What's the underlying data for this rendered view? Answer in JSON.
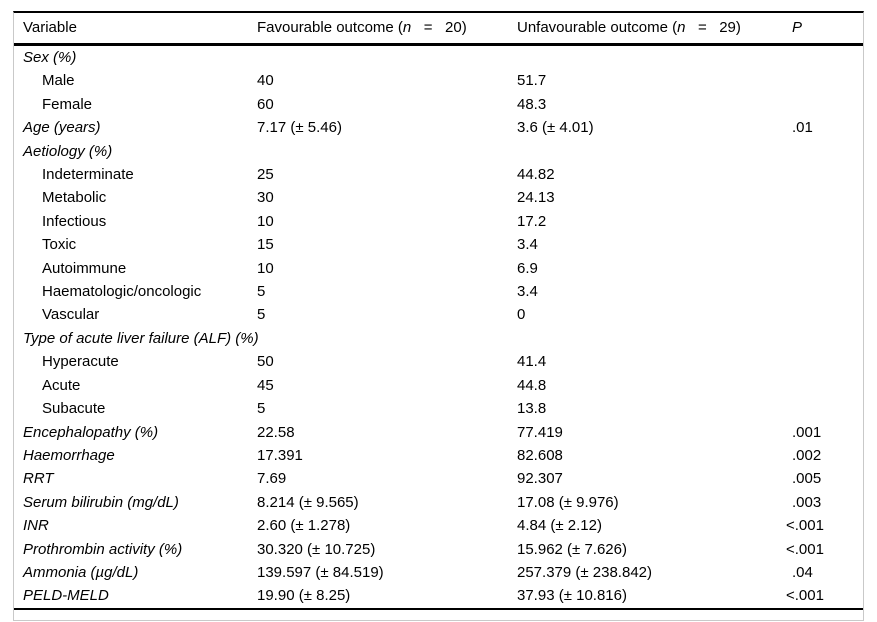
{
  "table": {
    "header": {
      "col1": "Variable",
      "col2_prefix": "Favourable outcome (",
      "col2_n": "n",
      "col2_suffix": "   =   20)",
      "col3_prefix": "Unfavourable outcome (",
      "col3_n": "n",
      "col3_suffix": "   =   29)",
      "col4": "P"
    },
    "rows": [
      {
        "label": "Sex (%)",
        "indent": false,
        "italic": true,
        "fav": "",
        "unfav": "",
        "p": ""
      },
      {
        "label": "Male",
        "indent": true,
        "italic": false,
        "fav": "40",
        "unfav": "51.7",
        "p": ""
      },
      {
        "label": "Female",
        "indent": true,
        "italic": false,
        "fav": "60",
        "unfav": "48.3",
        "p": ""
      },
      {
        "label": "Age (years)",
        "indent": false,
        "italic": true,
        "fav": "7.17 (± 5.46)",
        "unfav": "3.6 (± 4.01)",
        "p": ".01"
      },
      {
        "label": "Aetiology (%)",
        "indent": false,
        "italic": true,
        "fav": "",
        "unfav": "",
        "p": ""
      },
      {
        "label": "Indeterminate",
        "indent": true,
        "italic": false,
        "fav": "25",
        "unfav": "44.82",
        "p": ""
      },
      {
        "label": "Metabolic",
        "indent": true,
        "italic": false,
        "fav": "30",
        "unfav": "24.13",
        "p": ""
      },
      {
        "label": "Infectious",
        "indent": true,
        "italic": false,
        "fav": "10",
        "unfav": "17.2",
        "p": ""
      },
      {
        "label": "Toxic",
        "indent": true,
        "italic": false,
        "fav": "15",
        "unfav": "3.4",
        "p": ""
      },
      {
        "label": "Autoimmune",
        "indent": true,
        "italic": false,
        "fav": "10",
        "unfav": "6.9",
        "p": ""
      },
      {
        "label": "Haematologic/oncologic",
        "indent": true,
        "italic": false,
        "fav": "5",
        "unfav": "3.4",
        "p": ""
      },
      {
        "label": "Vascular",
        "indent": true,
        "italic": false,
        "fav": "5",
        "unfav": "0",
        "p": ""
      },
      {
        "label": "Type of acute liver failure (ALF) (%)",
        "indent": false,
        "italic": true,
        "fav": "",
        "unfav": "",
        "p": ""
      },
      {
        "label": "Hyperacute",
        "indent": true,
        "italic": false,
        "fav": "50",
        "unfav": "41.4",
        "p": ""
      },
      {
        "label": "Acute",
        "indent": true,
        "italic": false,
        "fav": "45",
        "unfav": "44.8",
        "p": ""
      },
      {
        "label": "Subacute",
        "indent": true,
        "italic": false,
        "fav": "5",
        "unfav": "13.8",
        "p": ""
      },
      {
        "label": "Encephalopathy (%)",
        "indent": false,
        "italic": true,
        "fav": "22.58",
        "unfav": "77.419",
        "p": ".001"
      },
      {
        "label": "Haemorrhage",
        "indent": false,
        "italic": true,
        "fav": "17.391",
        "unfav": "82.608",
        "p": ".002"
      },
      {
        "label": "RRT",
        "indent": false,
        "italic": true,
        "fav": "7.69",
        "unfav": "92.307",
        "p": ".005"
      },
      {
        "label": "Serum bilirubin (mg/dL)",
        "indent": false,
        "italic": true,
        "fav": "8.214 (± 9.565)",
        "unfav": "17.08 (± 9.976)",
        "p": ".003"
      },
      {
        "label": "INR",
        "indent": false,
        "italic": true,
        "fav": "2.60 (± 1.278)",
        "unfav": "4.84 (± 2.12)",
        "p": "<.001"
      },
      {
        "label": "Prothrombin activity (%)",
        "indent": false,
        "italic": true,
        "fav": "30.320 (± 10.725)",
        "unfav": "15.962 (± 7.626)",
        "p": "<.001"
      },
      {
        "label": "Ammonia (µg/dL)",
        "indent": false,
        "italic": true,
        "fav": "139.597 (± 84.519)",
        "unfav": "257.379 (± 238.842)",
        "p": ".04"
      },
      {
        "label": "PELD-MELD",
        "indent": false,
        "italic": true,
        "fav": "19.90 (± 8.25)",
        "unfav": "37.93 (± 10.816)",
        "p": "<.001"
      }
    ]
  },
  "colors": {
    "text": "#000000",
    "rule": "#000000",
    "frame": "#c9c9c9",
    "background": "#ffffff"
  }
}
